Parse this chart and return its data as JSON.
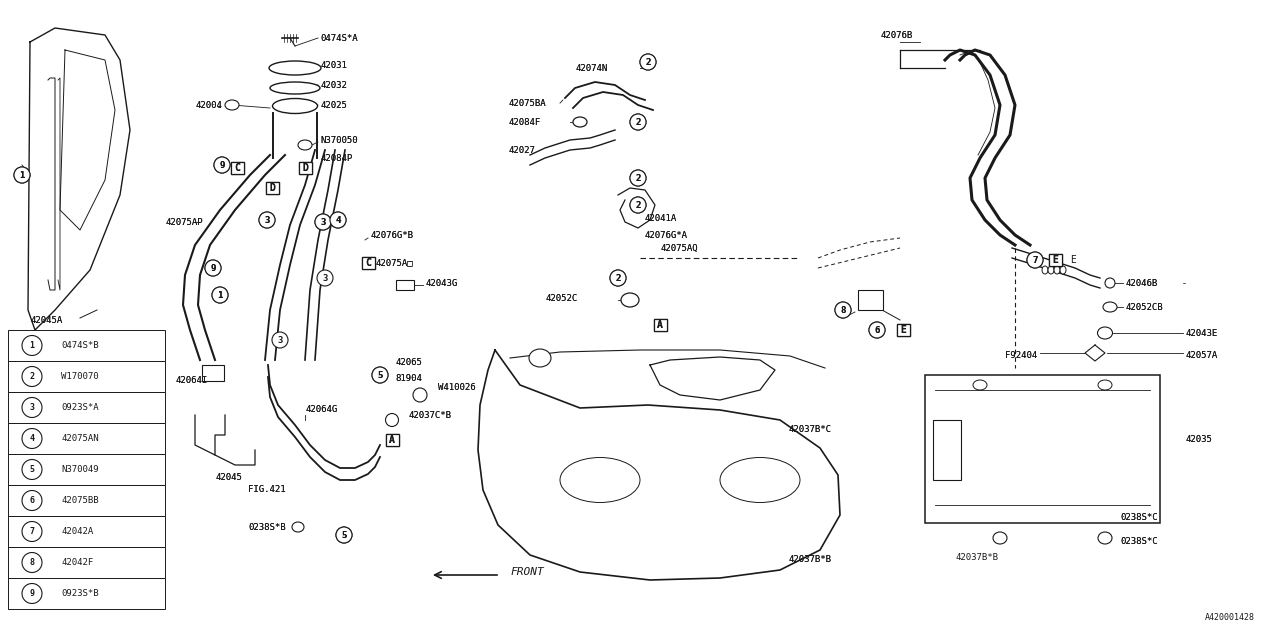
{
  "bg_color": "#ffffff",
  "line_color": "#1a1a1a",
  "fig_width": 12.8,
  "fig_height": 6.4,
  "diagram_id": "A420001428",
  "legend_items": [
    {
      "num": "1",
      "code": "0474S*B"
    },
    {
      "num": "2",
      "code": "W170070"
    },
    {
      "num": "3",
      "code": "0923S*A"
    },
    {
      "num": "4",
      "code": "42075AN"
    },
    {
      "num": "5",
      "code": "N370049"
    },
    {
      "num": "6",
      "code": "42075BB"
    },
    {
      "num": "7",
      "code": "42042A"
    },
    {
      "num": "8",
      "code": "42042F"
    },
    {
      "num": "9",
      "code": "0923S*B"
    }
  ]
}
